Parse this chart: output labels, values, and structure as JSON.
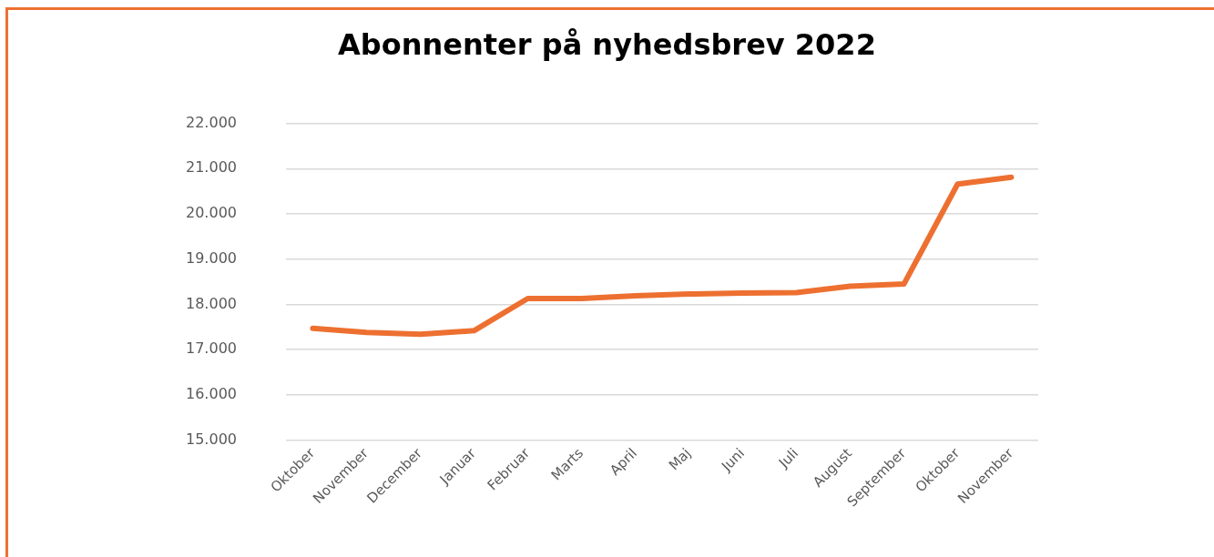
{
  "chart_data": {
    "type": "line",
    "title": "Abonnenter på nyhedsbrev 2022",
    "categories": [
      "Oktober",
      "November",
      "December",
      "Januar",
      "Februar",
      "Marts",
      "April",
      "Maj",
      "Juni",
      "Juli",
      "August",
      "September",
      "Oktober",
      "November"
    ],
    "series": [
      {
        "color": "#ed7031",
        "values": [
          17470,
          17380,
          17340,
          17420,
          18130,
          18130,
          18190,
          18230,
          18250,
          18260,
          18400,
          18450,
          20660,
          20810
        ]
      }
    ],
    "ylim": [
      15000,
      22000
    ],
    "yticks": [
      {
        "value": 15000,
        "label": "15.000"
      },
      {
        "value": 16000,
        "label": "16.000"
      },
      {
        "value": 17000,
        "label": "17.000"
      },
      {
        "value": 18000,
        "label": "18.000"
      },
      {
        "value": 19000,
        "label": "19.000"
      },
      {
        "value": 20000,
        "label": "20.000"
      },
      {
        "value": 21000,
        "label": "21.000"
      },
      {
        "value": 22000,
        "label": "22.000"
      }
    ],
    "grid": "y",
    "legend": false,
    "marker": "none",
    "line_style": "solid"
  }
}
